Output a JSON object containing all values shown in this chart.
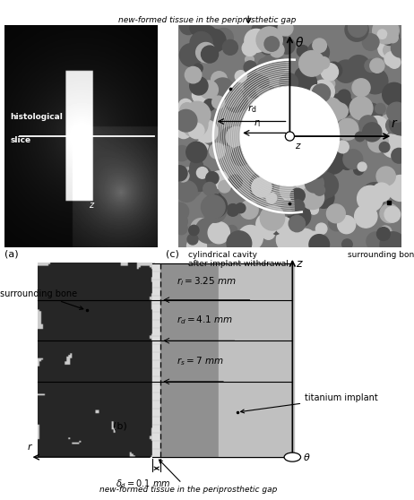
{
  "top_label": "new-formed tissue in the periprosthetic gap",
  "label_a": "(a)",
  "label_b": "(b)",
  "label_c": "(c)",
  "label_c_text1": "cylindrical cavity",
  "label_c_text2": "after implant withdrawal",
  "label_c_right": "surrounding bone",
  "label_surrounding_bone": "surrounding bone",
  "label_histological_1": "histological",
  "label_histological_2": "slice",
  "label_titanium": "titanium implant",
  "label_new_tissue": "new-formed tissue in the periprosthetic gap",
  "ri_label": "$r_i=3.25\\ mm$",
  "rd_label": "$r_d=4.1\\ mm$",
  "rs_label": "$r_s=7\\ mm$",
  "delta_label": "$\\delta_d=0.1\\ mm$",
  "bg_color": "#ffffff",
  "xray_bg": "#1a1a1a",
  "implant_dark": "#909090",
  "implant_light": "#c0c0c0",
  "gap_color": "#d8d8d8",
  "bone_bg": "#aaaaaa"
}
